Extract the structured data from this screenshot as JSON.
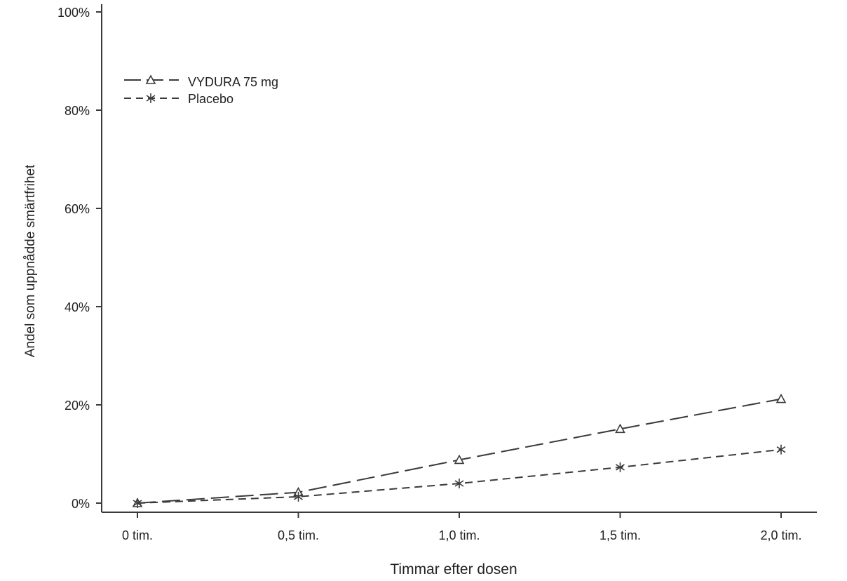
{
  "chart_data": {
    "type": "line",
    "title": "",
    "xlabel": "Timmar efter dosen",
    "ylabel": "Andel som uppnådde smärtfrihet",
    "categories": [
      "0 tim.",
      "0,5 tim.",
      "1,0 tim.",
      "1,5 tim.",
      "2,0 tim."
    ],
    "y_ticks": [
      "0%",
      "20%",
      "40%",
      "60%",
      "80%",
      "100%"
    ],
    "ylim": [
      0,
      100
    ],
    "grid": false,
    "legend_position": "top-left",
    "series": [
      {
        "name": "VYDURA 75 mg",
        "values": [
          0,
          2.2,
          8.8,
          15.1,
          21.2
        ],
        "marker": "triangle",
        "line_style": "long-dash",
        "color": "#3a3a3a"
      },
      {
        "name": "Placebo",
        "values": [
          0,
          1.3,
          4.0,
          7.3,
          10.9
        ],
        "marker": "asterisk",
        "line_style": "short-dash",
        "color": "#3a3a3a"
      }
    ]
  }
}
